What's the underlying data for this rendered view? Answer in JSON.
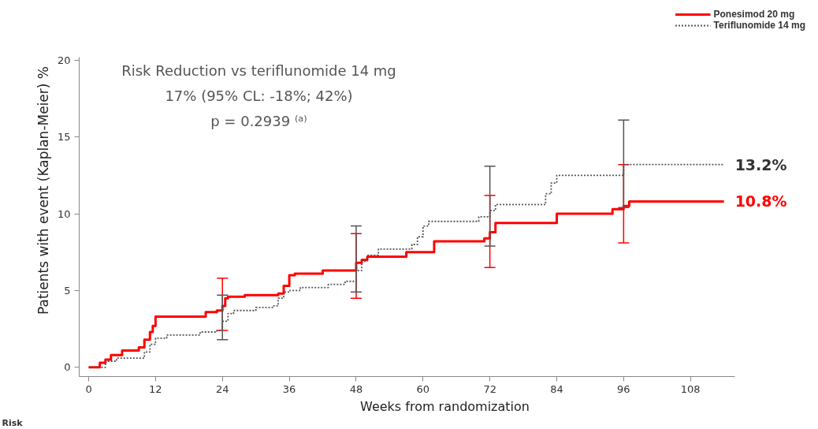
{
  "chart_data": {
    "type": "step",
    "xlabel": "Weeks from randomization",
    "ylabel": "Patients with event (Kaplan-Meier) %",
    "xlim": [
      -1.7,
      116
    ],
    "xticks": [
      0,
      12,
      24,
      36,
      48,
      60,
      72,
      84,
      96,
      108
    ],
    "ylim": [
      -0.6,
      20.2
    ],
    "yticks": [
      0,
      5,
      10,
      15,
      20
    ],
    "grid": false,
    "legend": "top right",
    "marker": "none",
    "series": [
      {
        "name": "Ponesimod 20 mg",
        "color": "#ff0000",
        "line_style": "solid",
        "x": [
          0,
          2,
          3,
          4,
          6,
          9,
          10,
          11,
          11.5,
          12,
          20,
          21,
          23,
          24,
          24.5,
          25,
          28,
          34,
          35,
          36,
          37,
          42,
          47,
          48,
          49,
          50,
          56,
          57,
          60,
          62,
          70,
          71,
          72,
          73,
          82,
          84,
          93,
          94,
          96,
          97,
          114
        ],
        "values": [
          0,
          0.3,
          0.5,
          0.8,
          1.1,
          1.3,
          1.8,
          2.3,
          2.7,
          3.3,
          3.3,
          3.6,
          3.7,
          4.0,
          4.5,
          4.6,
          4.7,
          4.8,
          5.3,
          6.0,
          6.1,
          6.3,
          6.3,
          6.8,
          7.0,
          7.2,
          7.2,
          7.5,
          7.5,
          8.2,
          8.2,
          8.4,
          8.8,
          9.4,
          9.4,
          10.0,
          10.0,
          10.3,
          10.5,
          10.8,
          10.8
        ],
        "errors": [
          null,
          null,
          null,
          null,
          null,
          null,
          null,
          null,
          null,
          null,
          null,
          null,
          null,
          [
            2.4,
            5.8
          ],
          null,
          null,
          null,
          null,
          null,
          null,
          null,
          null,
          null,
          [
            4.5,
            8.7
          ],
          null,
          null,
          null,
          null,
          null,
          null,
          null,
          null,
          [
            6.5,
            11.2
          ],
          null,
          null,
          null,
          null,
          null,
          [
            8.1,
            13.2
          ],
          null,
          null
        ]
      },
      {
        "name": "Teriflunomide 14 mg",
        "color": "#555555",
        "line_style": "dotted",
        "x": [
          0,
          3,
          5,
          9,
          10,
          11,
          12,
          14,
          20,
          23,
          24,
          25,
          26,
          30,
          33,
          34,
          35,
          36,
          38,
          43,
          46,
          48,
          49,
          50,
          52,
          57,
          58,
          59,
          60,
          61,
          70,
          72,
          73,
          80,
          82,
          83,
          84,
          94,
          96,
          114
        ],
        "values": [
          0,
          0.4,
          0.6,
          0.6,
          1.0,
          1.5,
          1.9,
          2.1,
          2.3,
          2.4,
          3.0,
          3.5,
          3.7,
          3.9,
          4.0,
          4.5,
          4.9,
          5.0,
          5.2,
          5.4,
          5.6,
          6.3,
          6.9,
          7.3,
          7.7,
          7.7,
          8.0,
          8.5,
          9.2,
          9.5,
          9.8,
          10.2,
          10.6,
          10.6,
          11.3,
          12.0,
          12.5,
          12.5,
          13.2,
          13.2
        ],
        "errors": [
          null,
          null,
          null,
          null,
          null,
          null,
          null,
          null,
          null,
          null,
          [
            1.8,
            4.7
          ],
          null,
          null,
          null,
          null,
          null,
          null,
          null,
          null,
          null,
          null,
          [
            4.9,
            9.2
          ],
          null,
          null,
          null,
          null,
          null,
          null,
          null,
          null,
          null,
          [
            7.9,
            13.1
          ],
          null,
          null,
          null,
          null,
          null,
          null,
          [
            10.4,
            16.1
          ],
          null
        ]
      }
    ],
    "annotations": [
      "Risk Reduction vs teriflunomide 14 mg",
      "17% (95% CL: -18%; 42%)",
      "p = 0.2939 ⁽ᵃ⁾",
      {
        "text": "13.2%",
        "x": 114,
        "y": 13.2
      },
      {
        "text": "10.8%",
        "x": 114,
        "y": 10.8
      },
      "Risk"
    ]
  }
}
